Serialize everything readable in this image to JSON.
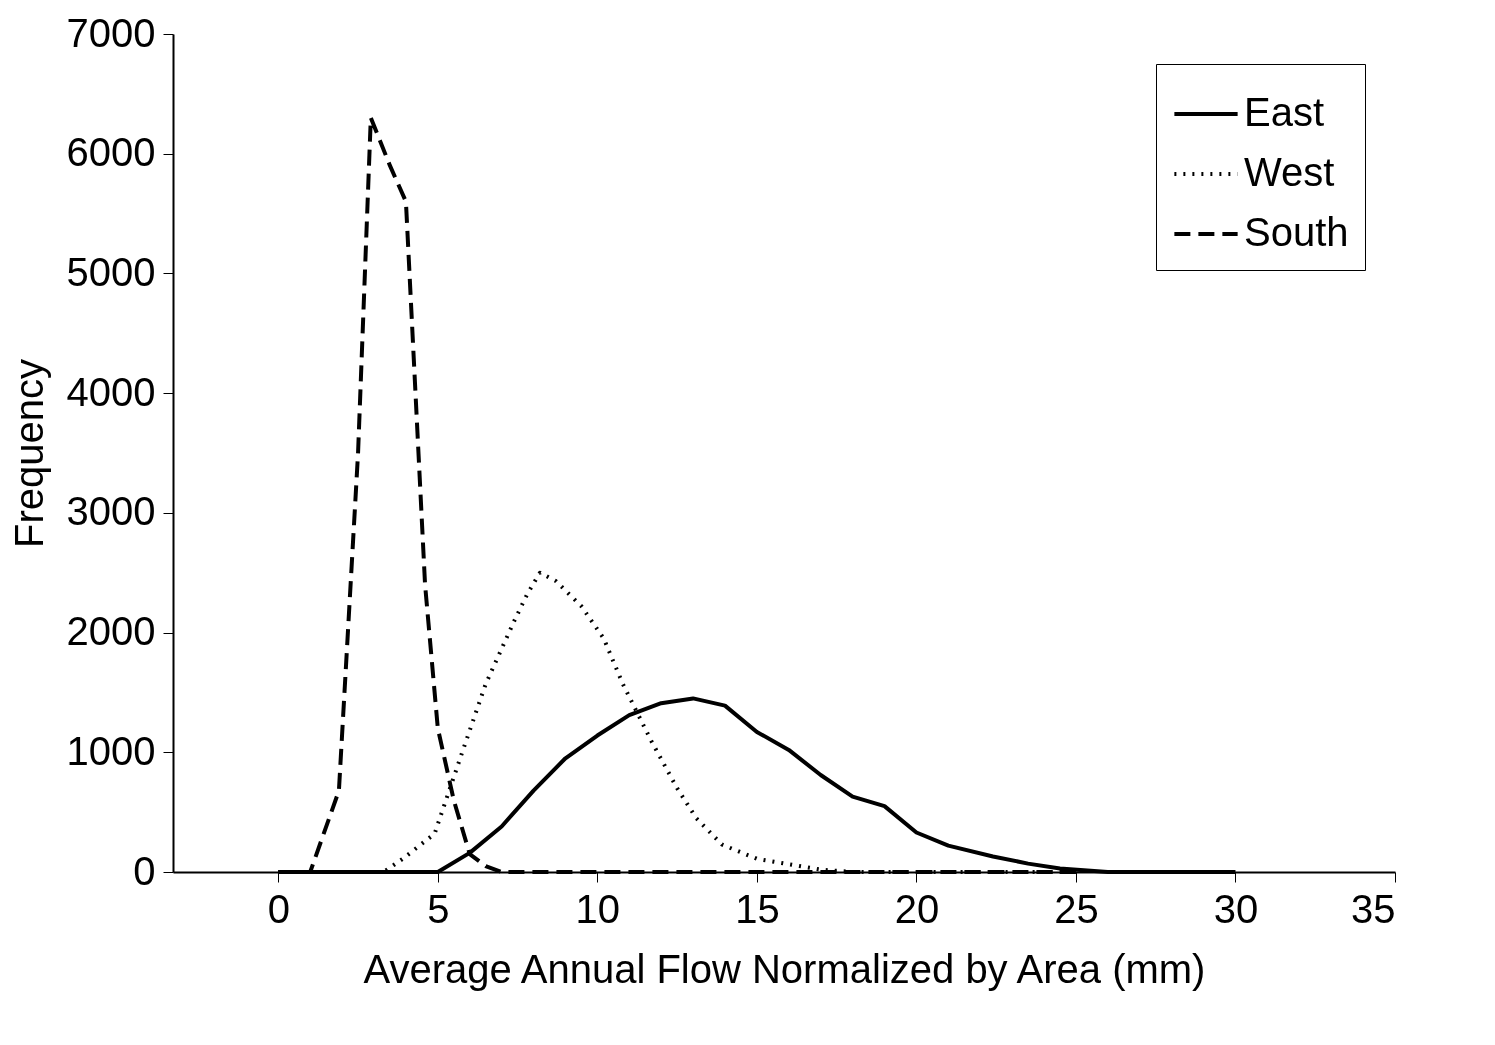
{
  "chart_data": {
    "type": "line",
    "xlabel": "Average Annual Flow Normalized by Area (mm)",
    "ylabel": "Frequency",
    "xlim": [
      -3.3,
      35
    ],
    "xticks": [
      0,
      5,
      10,
      15,
      20,
      25,
      30,
      35
    ],
    "ylim": [
      0,
      7000
    ],
    "yticks": [
      0,
      1000,
      2000,
      3000,
      4000,
      5000,
      6000,
      7000
    ],
    "legend": "top right",
    "grid": false,
    "marker": "none",
    "series": [
      {
        "name": "East",
        "color": "#000000",
        "line_style": "solid",
        "x": [
          0,
          5,
          6,
          7,
          8,
          9,
          10,
          11,
          12,
          13,
          14,
          15,
          16,
          17,
          18,
          19,
          20,
          21,
          22.4,
          23.5,
          24.5,
          26,
          30
        ],
        "values": [
          0,
          0,
          160,
          380,
          680,
          950,
          1140,
          1310,
          1410,
          1450,
          1390,
          1170,
          1020,
          810,
          630,
          550,
          330,
          220,
          130,
          70,
          30,
          0,
          0
        ]
      },
      {
        "name": "West",
        "color": "#000000",
        "line_style": "dotted",
        "x": [
          0,
          3.3,
          3.9,
          4.9,
          5.7,
          6.5,
          7.4,
          7.8,
          8.2,
          8.7,
          9.5,
          10.2,
          10.8,
          11.7,
          12.5,
          13.1,
          13.9,
          15,
          17,
          18,
          25
        ],
        "values": [
          0,
          0,
          110,
          320,
          950,
          1570,
          2100,
          2320,
          2500,
          2430,
          2220,
          1950,
          1570,
          1090,
          700,
          450,
          230,
          110,
          20,
          0,
          0
        ]
      },
      {
        "name": "South",
        "color": "#000000",
        "line_style": "dashed",
        "x": [
          0,
          1,
          1.9,
          2.5,
          2.9,
          3.5,
          4,
          4.3,
          4.6,
          5,
          5.5,
          6,
          6.5,
          7,
          25
        ],
        "values": [
          0,
          0,
          680,
          3500,
          6300,
          5900,
          5600,
          4000,
          2400,
          1200,
          600,
          150,
          50,
          0,
          0
        ]
      }
    ]
  }
}
